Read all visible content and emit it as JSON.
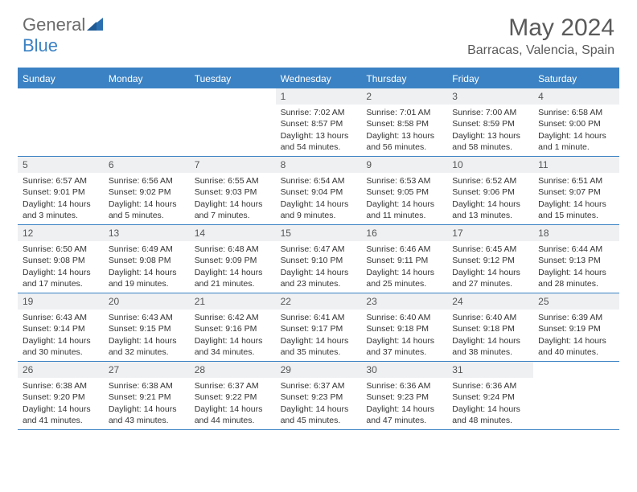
{
  "logo": {
    "word1": "General",
    "word2": "Blue"
  },
  "title": "May 2024",
  "location": "Barracas, Valencia, Spain",
  "colors": {
    "accent": "#3b82c4",
    "header_bg": "#eef0f2",
    "text": "#333333",
    "muted": "#5a5a5a",
    "background": "#ffffff"
  },
  "calendar": {
    "day_labels": [
      "Sunday",
      "Monday",
      "Tuesday",
      "Wednesday",
      "Thursday",
      "Friday",
      "Saturday"
    ],
    "cell_fontsize": 10.5,
    "head_fontsize": 12,
    "weeks": [
      [
        {
          "num": "",
          "sunrise": "",
          "sunset": "",
          "daylight": ""
        },
        {
          "num": "",
          "sunrise": "",
          "sunset": "",
          "daylight": ""
        },
        {
          "num": "",
          "sunrise": "",
          "sunset": "",
          "daylight": ""
        },
        {
          "num": "1",
          "sunrise": "Sunrise: 7:02 AM",
          "sunset": "Sunset: 8:57 PM",
          "daylight": "Daylight: 13 hours and 54 minutes."
        },
        {
          "num": "2",
          "sunrise": "Sunrise: 7:01 AM",
          "sunset": "Sunset: 8:58 PM",
          "daylight": "Daylight: 13 hours and 56 minutes."
        },
        {
          "num": "3",
          "sunrise": "Sunrise: 7:00 AM",
          "sunset": "Sunset: 8:59 PM",
          "daylight": "Daylight: 13 hours and 58 minutes."
        },
        {
          "num": "4",
          "sunrise": "Sunrise: 6:58 AM",
          "sunset": "Sunset: 9:00 PM",
          "daylight": "Daylight: 14 hours and 1 minute."
        }
      ],
      [
        {
          "num": "5",
          "sunrise": "Sunrise: 6:57 AM",
          "sunset": "Sunset: 9:01 PM",
          "daylight": "Daylight: 14 hours and 3 minutes."
        },
        {
          "num": "6",
          "sunrise": "Sunrise: 6:56 AM",
          "sunset": "Sunset: 9:02 PM",
          "daylight": "Daylight: 14 hours and 5 minutes."
        },
        {
          "num": "7",
          "sunrise": "Sunrise: 6:55 AM",
          "sunset": "Sunset: 9:03 PM",
          "daylight": "Daylight: 14 hours and 7 minutes."
        },
        {
          "num": "8",
          "sunrise": "Sunrise: 6:54 AM",
          "sunset": "Sunset: 9:04 PM",
          "daylight": "Daylight: 14 hours and 9 minutes."
        },
        {
          "num": "9",
          "sunrise": "Sunrise: 6:53 AM",
          "sunset": "Sunset: 9:05 PM",
          "daylight": "Daylight: 14 hours and 11 minutes."
        },
        {
          "num": "10",
          "sunrise": "Sunrise: 6:52 AM",
          "sunset": "Sunset: 9:06 PM",
          "daylight": "Daylight: 14 hours and 13 minutes."
        },
        {
          "num": "11",
          "sunrise": "Sunrise: 6:51 AM",
          "sunset": "Sunset: 9:07 PM",
          "daylight": "Daylight: 14 hours and 15 minutes."
        }
      ],
      [
        {
          "num": "12",
          "sunrise": "Sunrise: 6:50 AM",
          "sunset": "Sunset: 9:08 PM",
          "daylight": "Daylight: 14 hours and 17 minutes."
        },
        {
          "num": "13",
          "sunrise": "Sunrise: 6:49 AM",
          "sunset": "Sunset: 9:08 PM",
          "daylight": "Daylight: 14 hours and 19 minutes."
        },
        {
          "num": "14",
          "sunrise": "Sunrise: 6:48 AM",
          "sunset": "Sunset: 9:09 PM",
          "daylight": "Daylight: 14 hours and 21 minutes."
        },
        {
          "num": "15",
          "sunrise": "Sunrise: 6:47 AM",
          "sunset": "Sunset: 9:10 PM",
          "daylight": "Daylight: 14 hours and 23 minutes."
        },
        {
          "num": "16",
          "sunrise": "Sunrise: 6:46 AM",
          "sunset": "Sunset: 9:11 PM",
          "daylight": "Daylight: 14 hours and 25 minutes."
        },
        {
          "num": "17",
          "sunrise": "Sunrise: 6:45 AM",
          "sunset": "Sunset: 9:12 PM",
          "daylight": "Daylight: 14 hours and 27 minutes."
        },
        {
          "num": "18",
          "sunrise": "Sunrise: 6:44 AM",
          "sunset": "Sunset: 9:13 PM",
          "daylight": "Daylight: 14 hours and 28 minutes."
        }
      ],
      [
        {
          "num": "19",
          "sunrise": "Sunrise: 6:43 AM",
          "sunset": "Sunset: 9:14 PM",
          "daylight": "Daylight: 14 hours and 30 minutes."
        },
        {
          "num": "20",
          "sunrise": "Sunrise: 6:43 AM",
          "sunset": "Sunset: 9:15 PM",
          "daylight": "Daylight: 14 hours and 32 minutes."
        },
        {
          "num": "21",
          "sunrise": "Sunrise: 6:42 AM",
          "sunset": "Sunset: 9:16 PM",
          "daylight": "Daylight: 14 hours and 34 minutes."
        },
        {
          "num": "22",
          "sunrise": "Sunrise: 6:41 AM",
          "sunset": "Sunset: 9:17 PM",
          "daylight": "Daylight: 14 hours and 35 minutes."
        },
        {
          "num": "23",
          "sunrise": "Sunrise: 6:40 AM",
          "sunset": "Sunset: 9:18 PM",
          "daylight": "Daylight: 14 hours and 37 minutes."
        },
        {
          "num": "24",
          "sunrise": "Sunrise: 6:40 AM",
          "sunset": "Sunset: 9:18 PM",
          "daylight": "Daylight: 14 hours and 38 minutes."
        },
        {
          "num": "25",
          "sunrise": "Sunrise: 6:39 AM",
          "sunset": "Sunset: 9:19 PM",
          "daylight": "Daylight: 14 hours and 40 minutes."
        }
      ],
      [
        {
          "num": "26",
          "sunrise": "Sunrise: 6:38 AM",
          "sunset": "Sunset: 9:20 PM",
          "daylight": "Daylight: 14 hours and 41 minutes."
        },
        {
          "num": "27",
          "sunrise": "Sunrise: 6:38 AM",
          "sunset": "Sunset: 9:21 PM",
          "daylight": "Daylight: 14 hours and 43 minutes."
        },
        {
          "num": "28",
          "sunrise": "Sunrise: 6:37 AM",
          "sunset": "Sunset: 9:22 PM",
          "daylight": "Daylight: 14 hours and 44 minutes."
        },
        {
          "num": "29",
          "sunrise": "Sunrise: 6:37 AM",
          "sunset": "Sunset: 9:23 PM",
          "daylight": "Daylight: 14 hours and 45 minutes."
        },
        {
          "num": "30",
          "sunrise": "Sunrise: 6:36 AM",
          "sunset": "Sunset: 9:23 PM",
          "daylight": "Daylight: 14 hours and 47 minutes."
        },
        {
          "num": "31",
          "sunrise": "Sunrise: 6:36 AM",
          "sunset": "Sunset: 9:24 PM",
          "daylight": "Daylight: 14 hours and 48 minutes."
        },
        {
          "num": "",
          "sunrise": "",
          "sunset": "",
          "daylight": ""
        }
      ]
    ]
  }
}
